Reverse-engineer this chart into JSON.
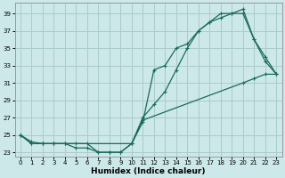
{
  "xlabel": "Humidex (Indice chaleur)",
  "background_color": "#cce8e8",
  "grid_color": "#aacccc",
  "line_color": "#1a6b5a",
  "xlim": [
    -0.5,
    23.5
  ],
  "ylim": [
    22.5,
    40.2
  ],
  "xticks": [
    0,
    1,
    2,
    3,
    4,
    5,
    6,
    7,
    8,
    9,
    10,
    11,
    12,
    13,
    14,
    15,
    16,
    17,
    18,
    19,
    20,
    21,
    22,
    23
  ],
  "yticks": [
    23,
    25,
    27,
    29,
    31,
    33,
    35,
    37,
    39
  ],
  "line1_x": [
    0,
    1,
    2,
    3,
    4,
    5,
    6,
    7,
    8,
    9,
    10,
    11,
    12,
    13,
    14,
    15,
    16,
    17,
    18,
    19,
    20,
    21,
    22,
    23
  ],
  "line1_y": [
    25,
    24,
    24,
    24,
    24,
    23.5,
    23.5,
    23,
    23,
    23,
    24,
    27,
    28.5,
    30,
    32.5,
    35,
    37,
    38,
    39,
    39,
    39,
    36,
    33.5,
    32
  ],
  "line2_x": [
    0,
    1,
    2,
    3,
    4,
    5,
    6,
    7,
    8,
    9,
    10,
    11,
    12,
    13,
    14,
    15,
    16,
    17,
    18,
    19,
    20,
    21,
    22,
    23
  ],
  "line2_y": [
    25,
    24,
    24,
    24,
    24,
    24,
    24,
    23,
    23,
    23,
    24,
    26.5,
    32.5,
    33,
    35,
    35.5,
    37,
    38,
    38.5,
    39,
    39.5,
    36,
    34,
    32
  ],
  "line3_x": [
    0,
    1,
    2,
    3,
    10,
    11,
    20,
    21,
    22,
    23
  ],
  "line3_y": [
    25,
    24.2,
    24,
    24,
    24,
    26.7,
    31,
    31.5,
    32,
    32
  ]
}
